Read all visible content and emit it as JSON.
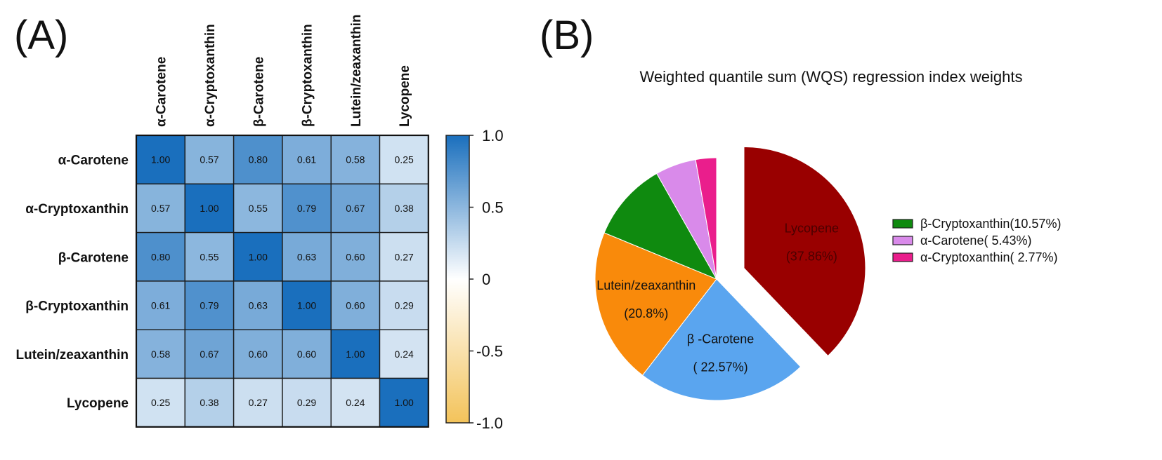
{
  "panels": {
    "a_label": "(A)",
    "b_label": "(B)"
  },
  "chart_data": [
    {
      "type": "heatmap",
      "title": "",
      "variables": [
        "α-Carotene",
        "α-Cryptoxanthin",
        "β-Carotene",
        "β-Cryptoxanthin",
        "Lutein/zeaxanthin",
        "Lycopene"
      ],
      "matrix": [
        [
          "1.00",
          "0.57",
          "0.80",
          "0.61",
          "0.58",
          "0.25"
        ],
        [
          "0.57",
          "1.00",
          "0.55",
          "0.79",
          "0.67",
          "0.38"
        ],
        [
          "0.80",
          "0.55",
          "1.00",
          "0.63",
          "0.60",
          "0.27"
        ],
        [
          "0.61",
          "0.79",
          "0.63",
          "1.00",
          "0.60",
          "0.29"
        ],
        [
          "0.58",
          "0.67",
          "0.60",
          "0.60",
          "1.00",
          "0.24"
        ],
        [
          "0.25",
          "0.38",
          "0.27",
          "0.29",
          "0.24",
          "1.00"
        ]
      ],
      "colorbar": {
        "range": [
          -1.0,
          1.0
        ],
        "ticks": [
          {
            "value": 1.0,
            "label": "1.0"
          },
          {
            "value": 0.5,
            "label": "0.5"
          },
          {
            "value": 0,
            "label": "0"
          },
          {
            "value": -0.5,
            "label": "-0.5"
          },
          {
            "value": -1.0,
            "label": "-1.0"
          }
        ],
        "colors": {
          "positive": "#1a6fbd",
          "zero": "#ffffff",
          "negative": "#f3c35a"
        }
      }
    },
    {
      "type": "pie",
      "title": "Weighted quantile sum (WQS) regression index weights",
      "slices": [
        {
          "name": "Lycopene",
          "value": 37.86,
          "inside_label": "Lycopene",
          "inside_value": "(37.86%)",
          "color": "#990000",
          "text_color": "#4a0000",
          "exploded": true
        },
        {
          "name": "β-Carotene",
          "value": 22.57,
          "inside_label": "β  -Carotene",
          "inside_value": "( 22.57%)",
          "color": "#5aa5ef",
          "text_color": "#111111",
          "exploded": false
        },
        {
          "name": "Lutein/zeaxanthin",
          "value": 20.8,
          "inside_label": "Lutein/zeaxanthin",
          "inside_value": "(20.8%)",
          "color": "#f98a0b",
          "text_color": "#111111",
          "exploded": false
        },
        {
          "name": "β-Cryptoxanthin",
          "value": 10.57,
          "legend": "β-Cryptoxanthin(10.57%)",
          "color": "#0f8a0f",
          "exploded": false
        },
        {
          "name": "α-Carotene",
          "value": 5.43,
          "legend": "α-Carotene( 5.43%)",
          "color": "#d98aea",
          "exploded": false
        },
        {
          "name": "α-Cryptoxanthin",
          "value": 2.77,
          "legend": "α-Cryptoxanthin( 2.77%)",
          "color": "#ea1e8c",
          "exploded": false
        }
      ],
      "legend_position": "right"
    }
  ]
}
